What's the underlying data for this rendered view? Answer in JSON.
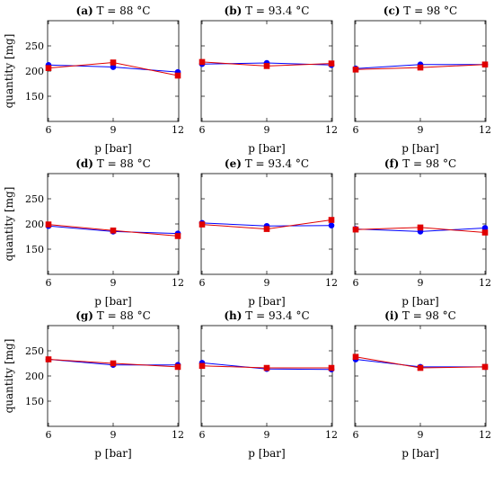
{
  "chart_data": {
    "type": "line",
    "rows": 3,
    "cols": 3,
    "xlabel": "p [bar]",
    "ylabel": "quantity [mg]",
    "x": [
      6,
      9,
      12
    ],
    "xticks": [
      "6",
      "9",
      "12"
    ],
    "ylim": [
      100,
      300
    ],
    "yticks": [
      "150",
      "200",
      "250"
    ],
    "series_colors": [
      "#0000ff",
      "#e00000"
    ],
    "series_markers": [
      "circle",
      "square"
    ],
    "panels": [
      {
        "letter": "(a)",
        "title": "T = 88 °C",
        "series": [
          {
            "values": [
              212,
              208,
              198
            ]
          },
          {
            "values": [
              206,
              217,
              191
            ]
          }
        ]
      },
      {
        "letter": "(b)",
        "title": "T = 93.4 °C",
        "series": [
          {
            "values": [
              214,
              216,
              212
            ]
          },
          {
            "values": [
              218,
              210,
              215
            ]
          }
        ]
      },
      {
        "letter": "(c)",
        "title": "T = 98 °C",
        "series": [
          {
            "values": [
              205,
              213,
              213
            ]
          },
          {
            "values": [
              203,
              207,
              213
            ]
          }
        ]
      },
      {
        "letter": "(d)",
        "title": "T = 88 °C",
        "series": [
          {
            "values": [
              196,
              185,
              181
            ]
          },
          {
            "values": [
              199,
              187,
              176
            ]
          }
        ]
      },
      {
        "letter": "(e)",
        "title": "T = 93.4 °C",
        "series": [
          {
            "values": [
              202,
              196,
              197
            ]
          },
          {
            "values": [
              199,
              190,
              208
            ]
          }
        ]
      },
      {
        "letter": "(f)",
        "title": "T = 98 °C",
        "series": [
          {
            "values": [
              190,
              185,
              192
            ]
          },
          {
            "values": [
              189,
              193,
              183
            ]
          }
        ]
      },
      {
        "letter": "(g)",
        "title": "T = 88 °C",
        "series": [
          {
            "values": [
              233,
              222,
              222
            ]
          },
          {
            "values": [
              233,
              225,
              218
            ]
          }
        ]
      },
      {
        "letter": "(h)",
        "title": "T = 93.4 °C",
        "series": [
          {
            "values": [
              226,
              214,
              213
            ]
          },
          {
            "values": [
              220,
              216,
              216
            ]
          }
        ]
      },
      {
        "letter": "(i)",
        "title": "T = 98 °C",
        "series": [
          {
            "values": [
              233,
              218,
              218
            ]
          },
          {
            "values": [
              238,
              216,
              218
            ]
          }
        ]
      }
    ]
  }
}
